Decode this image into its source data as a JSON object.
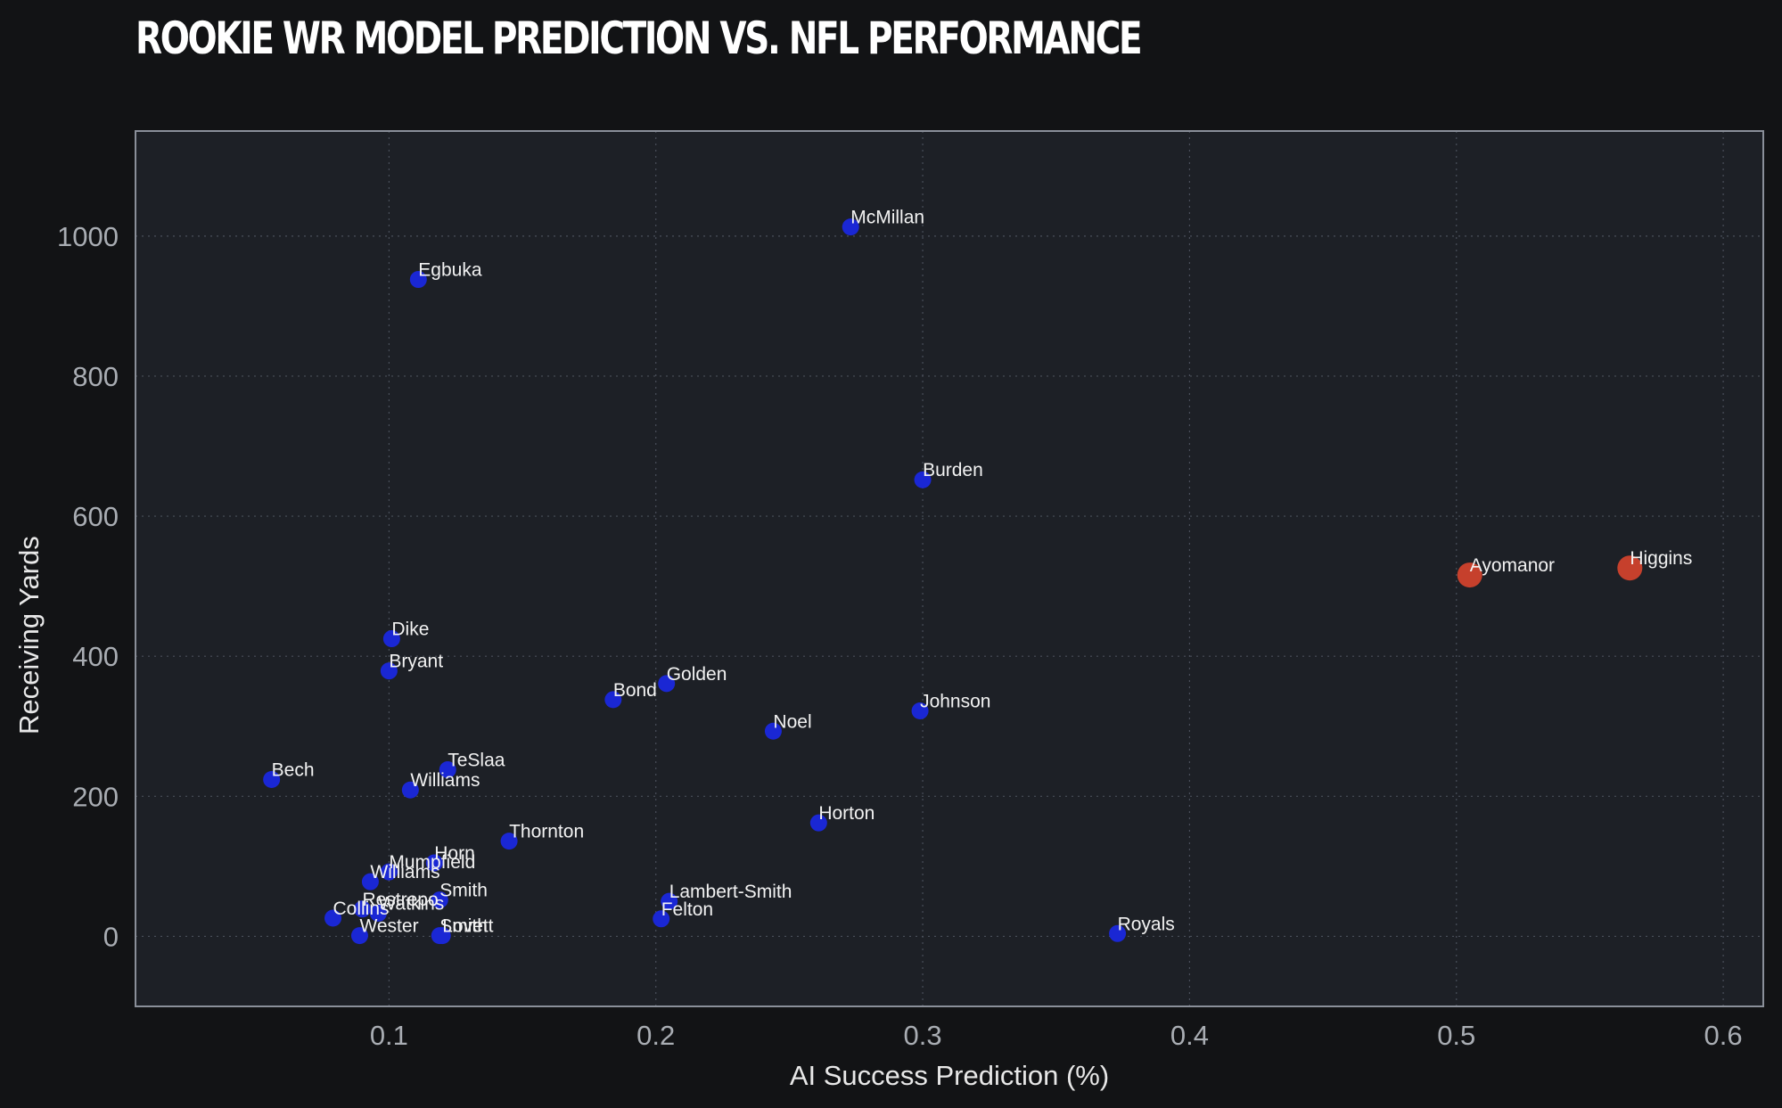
{
  "chart_data": {
    "type": "scatter",
    "title": "ROOKIE WR MODEL PREDICTION VS. NFL PERFORMANCE",
    "xlabel": "AI Success Prediction (%)",
    "ylabel": "Receiving Yards",
    "xlim": [
      0.005,
      0.615
    ],
    "ylim": [
      -100,
      1150
    ],
    "xticks": [
      "0.1",
      "0.2",
      "0.3",
      "0.4",
      "0.5",
      "0.6"
    ],
    "xtick_values": [
      0.1,
      0.2,
      0.3,
      0.4,
      0.5,
      0.6
    ],
    "yticks": [
      "0",
      "200",
      "400",
      "600",
      "800",
      "1000"
    ],
    "ytick_values": [
      0,
      200,
      400,
      600,
      800,
      1000
    ],
    "grid": true,
    "colors": {
      "background": "#121315",
      "plot_bg": "#1d2026",
      "frame": "#8a8f99",
      "grid": "#4a4f5a",
      "default_point": "#1a27d4",
      "highlight_point": "#c6402c"
    },
    "points": [
      {
        "name": "McMillan",
        "x": 0.273,
        "y": 1013,
        "highlight": false
      },
      {
        "name": "Egbuka",
        "x": 0.111,
        "y": 938,
        "highlight": false
      },
      {
        "name": "Burden",
        "x": 0.3,
        "y": 652,
        "highlight": false
      },
      {
        "name": "Ayomanor",
        "x": 0.505,
        "y": 516,
        "highlight": true
      },
      {
        "name": "Higgins",
        "x": 0.565,
        "y": 526,
        "highlight": true
      },
      {
        "name": "Dike",
        "x": 0.101,
        "y": 425,
        "highlight": false
      },
      {
        "name": "Bryant",
        "x": 0.1,
        "y": 379,
        "highlight": false
      },
      {
        "name": "Golden",
        "x": 0.204,
        "y": 361,
        "highlight": false
      },
      {
        "name": "Bond",
        "x": 0.184,
        "y": 338,
        "highlight": false
      },
      {
        "name": "Johnson",
        "x": 0.299,
        "y": 322,
        "highlight": false
      },
      {
        "name": "Noel",
        "x": 0.244,
        "y": 293,
        "highlight": false
      },
      {
        "name": "TeSlaa",
        "x": 0.122,
        "y": 238,
        "highlight": false
      },
      {
        "name": "Bech",
        "x": 0.056,
        "y": 224,
        "highlight": false
      },
      {
        "name": "Williams",
        "x": 0.108,
        "y": 209,
        "highlight": false
      },
      {
        "name": "Horton",
        "x": 0.261,
        "y": 162,
        "highlight": false
      },
      {
        "name": "Thornton",
        "x": 0.145,
        "y": 136,
        "highlight": false
      },
      {
        "name": "Horn",
        "x": 0.117,
        "y": 105,
        "highlight": false
      },
      {
        "name": "Mumpfield",
        "x": 0.1,
        "y": 92,
        "highlight": false
      },
      {
        "name": "Williams",
        "x": 0.093,
        "y": 78,
        "highlight": false
      },
      {
        "name": "Smith",
        "x": 0.119,
        "y": 52,
        "highlight": false
      },
      {
        "name": "Lambert-Smith",
        "x": 0.205,
        "y": 50,
        "highlight": false
      },
      {
        "name": "Restrepo",
        "x": 0.09,
        "y": 39,
        "highlight": false
      },
      {
        "name": "Watkins",
        "x": 0.096,
        "y": 33,
        "highlight": false
      },
      {
        "name": "Collins",
        "x": 0.079,
        "y": 26,
        "highlight": false
      },
      {
        "name": "Felton",
        "x": 0.202,
        "y": 25,
        "highlight": false
      },
      {
        "name": "Royals",
        "x": 0.373,
        "y": 4,
        "highlight": false
      },
      {
        "name": "Wester",
        "x": 0.089,
        "y": 1,
        "highlight": false
      },
      {
        "name": "Smith",
        "x": 0.119,
        "y": 1,
        "highlight": false
      },
      {
        "name": "Lovett",
        "x": 0.12,
        "y": 1,
        "highlight": false
      }
    ]
  }
}
